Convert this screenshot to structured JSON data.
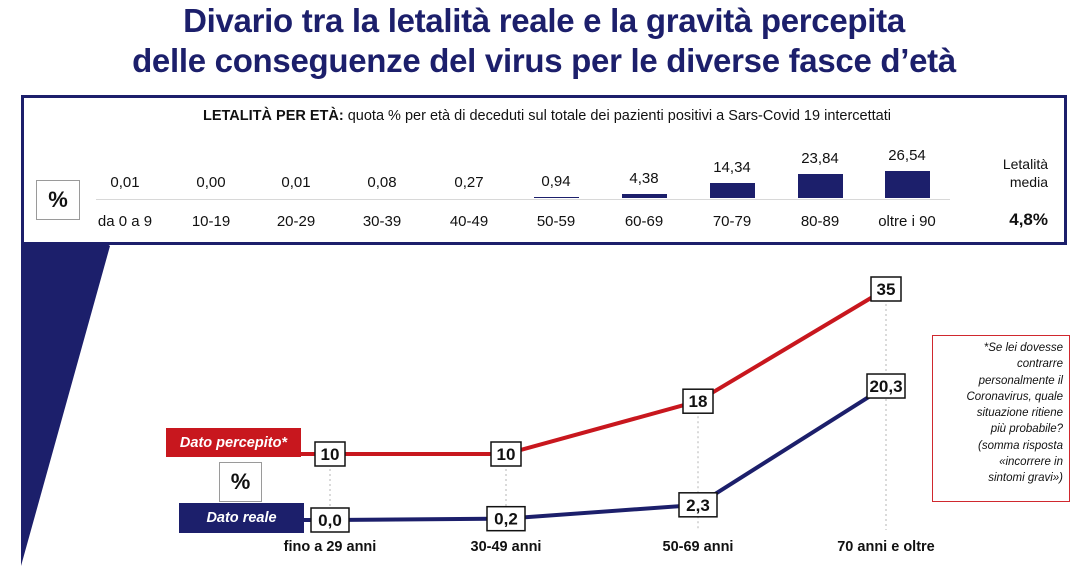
{
  "title": {
    "line1": "Divario tra la letalità reale e la gravità percepita",
    "line2": "delle conseguenze del virus per le diverse fasce d’età"
  },
  "panel": {
    "header_bold": "LETALITÀ PER ETÀ:",
    "header_text": " quota % per età di deceduti sul totale dei pazienti positivi a Sars-Covid 19 intercettati",
    "percent_symbol": "%",
    "average_label_line1": "Letalità",
    "average_label_line2": "media",
    "average_value": "4,8%",
    "bar_color": "#1c1f6b"
  },
  "chart_data": [
    {
      "type": "bar",
      "categories": [
        "da 0 a 9",
        "10-19",
        "20-29",
        "30-39",
        "40-49",
        "50-59",
        "60-69",
        "70-79",
        "80-89",
        "oltre i 90"
      ],
      "values": [
        0.01,
        0.0,
        0.01,
        0.08,
        0.27,
        0.94,
        4.38,
        14.34,
        23.84,
        26.54
      ],
      "value_labels": [
        "0,01",
        "0,00",
        "0,01",
        "0,08",
        "0,27",
        "0,94",
        "4,38",
        "14,34",
        "23,84",
        "26,54"
      ],
      "title": "LETALITÀ PER ETÀ: quota % per età di deceduti sul totale dei pazienti positivi a Sars-Covid 19 intercettati",
      "xlabel": "",
      "ylabel": "%"
    },
    {
      "type": "line",
      "categories": [
        "fino a 29 anni",
        "30-49 anni",
        "50-69 anni",
        "70 anni e oltre"
      ],
      "series": [
        {
          "name": "Dato percepito*",
          "values": [
            10,
            10,
            18,
            35
          ],
          "labels": [
            "10",
            "10",
            "18",
            "35"
          ],
          "color": "#c8171e"
        },
        {
          "name": "Dato reale",
          "values": [
            0.0,
            0.2,
            2.3,
            20.3
          ],
          "labels": [
            "0,0",
            "0,2",
            "2,3",
            "20,3"
          ],
          "color": "#1c1f6b"
        }
      ],
      "ylabel": "%",
      "ylim": [
        0,
        35
      ]
    }
  ],
  "lower": {
    "percent_symbol": "%",
    "tag_perceived": "Dato percepito*",
    "tag_real": "Dato reale"
  },
  "note": {
    "lines": [
      "*Se lei dovesse",
      "contrarre",
      "personalmente il",
      "Coronavirus, quale",
      "situazione ritiene",
      "più probabile?",
      "(somma risposta",
      "«incorrere in",
      "sintomi gravi»)"
    ]
  }
}
